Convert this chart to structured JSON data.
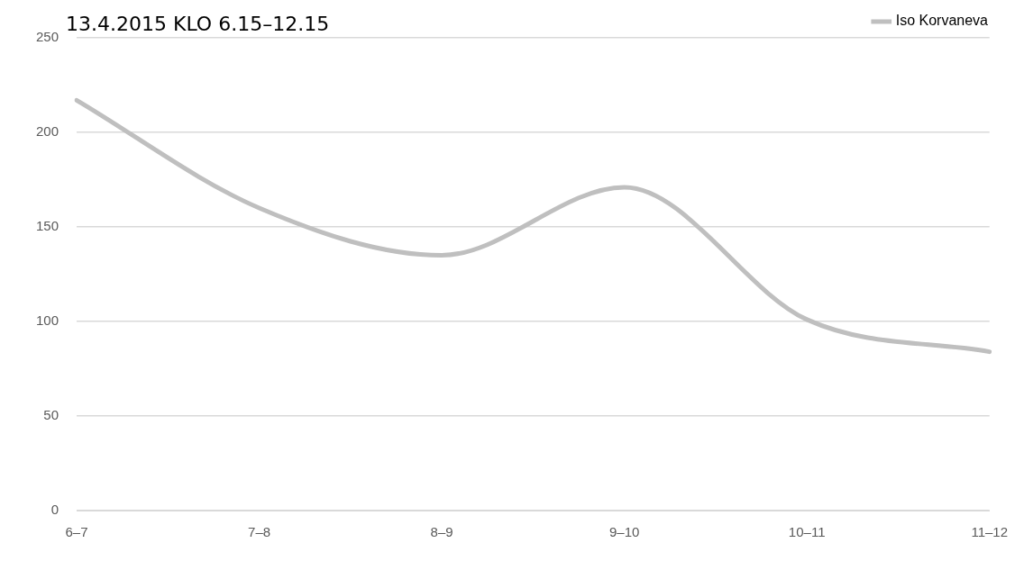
{
  "chart_data": {
    "type": "line",
    "title": "13.4.2015 KLO 6.15–12.15",
    "categories": [
      "6–7",
      "7–8",
      "8–9",
      "9–10",
      "10–11",
      "11–12"
    ],
    "series": [
      {
        "name": "Iso Korvaneva",
        "color": "#bfbfbf",
        "values": [
          217,
          160,
          135,
          171,
          101,
          84
        ]
      }
    ],
    "ylim": [
      0,
      250
    ],
    "yticks": [
      0,
      50,
      100,
      150,
      200,
      250
    ],
    "grid": "y",
    "legend": "top right",
    "marker": "none",
    "line_style": "solid"
  }
}
